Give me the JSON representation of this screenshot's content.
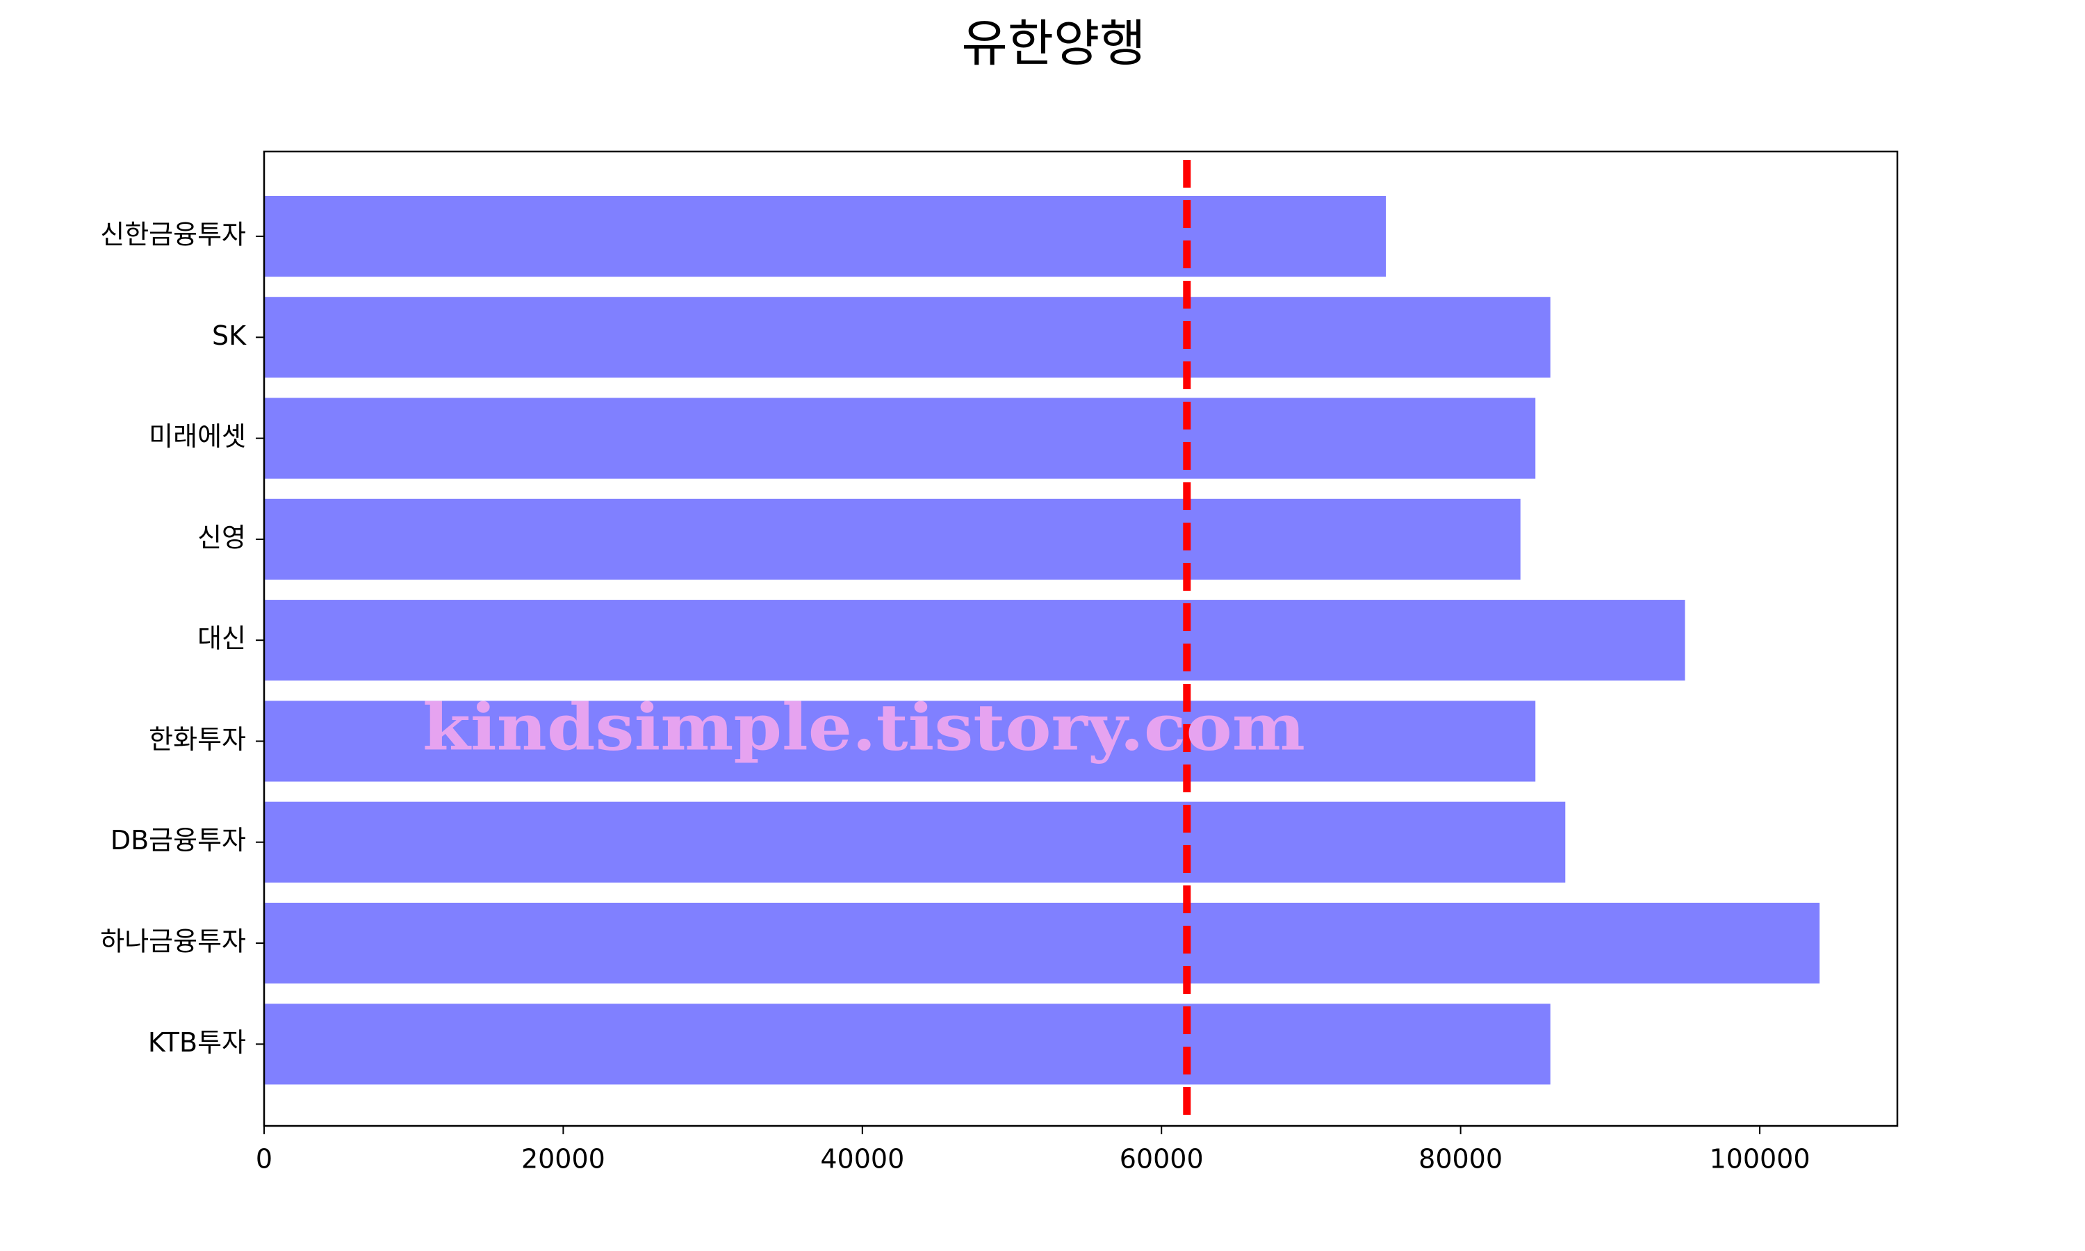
{
  "chart_data": {
    "type": "barh",
    "title": "유한양행",
    "categories": [
      "신한금융투자",
      "SK",
      "미래에셋",
      "신영",
      "대신",
      "한화투자",
      "DB금융투자",
      "하나금융투자",
      "KTB투자"
    ],
    "values": [
      75000,
      86000,
      85000,
      84000,
      95000,
      85000,
      87000,
      104000,
      86000
    ],
    "color": "#8080ff",
    "xlim": [
      0,
      109200
    ],
    "xticks": [
      0,
      20000,
      40000,
      60000,
      80000,
      100000
    ],
    "reference_line": 61700,
    "reference_color": "#ff0000",
    "watermark": "kindsimple.tistory.com"
  }
}
